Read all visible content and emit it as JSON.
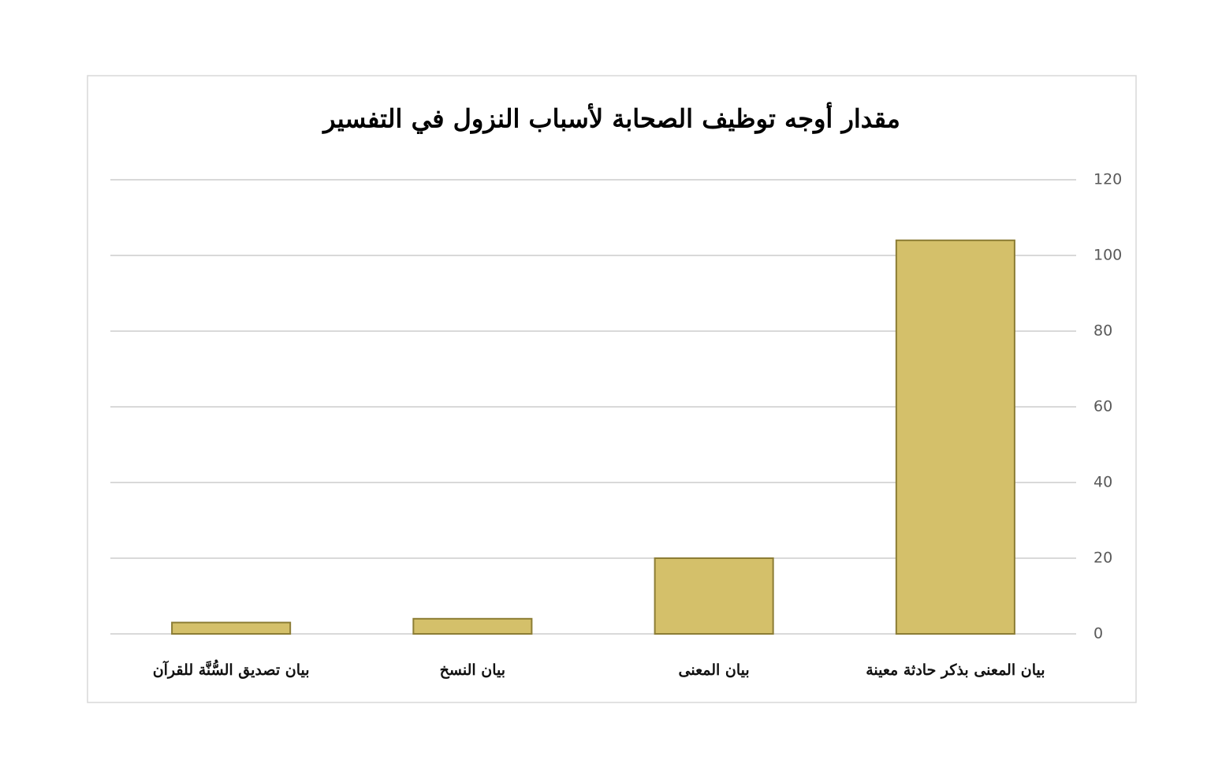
{
  "chart_data": {
    "type": "bar",
    "title": "مقدار أوجه توظيف الصحابة لأسباب النزول في التفسير",
    "categories": [
      "بيان المعنى بذكر حادثة معينة",
      "بيان المعنى",
      "بيان النسخ",
      "بيان تصديق السُّنَّة للقرآن"
    ],
    "values": [
      104,
      20,
      4,
      3
    ],
    "color": "#d4c06a",
    "ylim": [
      0,
      120
    ],
    "yticks": [
      0,
      20,
      40,
      60,
      80,
      100,
      120
    ],
    "grid": true,
    "direction": "rtl"
  }
}
